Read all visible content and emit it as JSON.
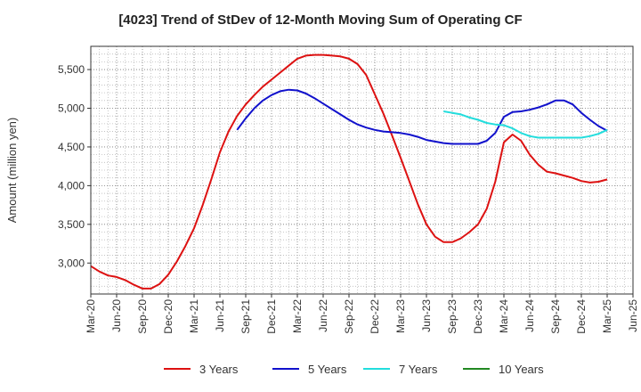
{
  "chart_data": {
    "type": "line",
    "title": "[4023]  Trend of StDev of 12-Month Moving Sum of Operating CF",
    "ylabel": "Amount (million yen)",
    "xlabel": "",
    "ylim": [
      2600,
      5800
    ],
    "yticks": [
      3000,
      3500,
      4000,
      4500,
      5000,
      5500
    ],
    "ytick_labels": [
      "3,000",
      "3,500",
      "4,000",
      "4,500",
      "5,000",
      "5,500"
    ],
    "xlim": [
      "2020-03",
      "2025-06"
    ],
    "xticks": [
      "2020-03",
      "2020-06",
      "2020-09",
      "2020-12",
      "2021-03",
      "2021-06",
      "2021-09",
      "2021-12",
      "2022-03",
      "2022-06",
      "2022-09",
      "2022-12",
      "2023-03",
      "2023-06",
      "2023-09",
      "2023-12",
      "2024-03",
      "2024-06",
      "2024-09",
      "2024-12",
      "2025-03",
      "2025-06"
    ],
    "xtick_labels": [
      "Mar-20",
      "Jun-20",
      "Sep-20",
      "Dec-20",
      "Mar-21",
      "Jun-21",
      "Sep-21",
      "Dec-21",
      "Mar-22",
      "Jun-22",
      "Sep-22",
      "Dec-22",
      "Mar-23",
      "Jun-23",
      "Sep-23",
      "Dec-23",
      "Mar-24",
      "Jun-24",
      "Sep-24",
      "Dec-24",
      "Mar-25",
      "Jun-25"
    ],
    "grid": true,
    "legend_position": "bottom",
    "series": [
      {
        "name": "3 Years",
        "color": "#dd1111",
        "points": [
          [
            "2020-03",
            2960
          ],
          [
            "2020-04",
            2890
          ],
          [
            "2020-05",
            2840
          ],
          [
            "2020-06",
            2820
          ],
          [
            "2020-07",
            2780
          ],
          [
            "2020-08",
            2720
          ],
          [
            "2020-09",
            2670
          ],
          [
            "2020-10",
            2670
          ],
          [
            "2020-11",
            2730
          ],
          [
            "2020-12",
            2850
          ],
          [
            "2021-01",
            3020
          ],
          [
            "2021-02",
            3220
          ],
          [
            "2021-03",
            3450
          ],
          [
            "2021-04",
            3750
          ],
          [
            "2021-05",
            4080
          ],
          [
            "2021-06",
            4430
          ],
          [
            "2021-07",
            4700
          ],
          [
            "2021-08",
            4900
          ],
          [
            "2021-09",
            5050
          ],
          [
            "2021-10",
            5170
          ],
          [
            "2021-11",
            5280
          ],
          [
            "2021-12",
            5370
          ],
          [
            "2022-01",
            5460
          ],
          [
            "2022-02",
            5550
          ],
          [
            "2022-03",
            5640
          ],
          [
            "2022-04",
            5680
          ],
          [
            "2022-05",
            5690
          ],
          [
            "2022-06",
            5690
          ],
          [
            "2022-07",
            5680
          ],
          [
            "2022-08",
            5670
          ],
          [
            "2022-09",
            5640
          ],
          [
            "2022-10",
            5570
          ],
          [
            "2022-11",
            5430
          ],
          [
            "2022-12",
            5180
          ],
          [
            "2023-01",
            4930
          ],
          [
            "2023-02",
            4650
          ],
          [
            "2023-03",
            4360
          ],
          [
            "2023-04",
            4060
          ],
          [
            "2023-05",
            3760
          ],
          [
            "2023-06",
            3500
          ],
          [
            "2023-07",
            3340
          ],
          [
            "2023-08",
            3270
          ],
          [
            "2023-09",
            3270
          ],
          [
            "2023-10",
            3320
          ],
          [
            "2023-11",
            3400
          ],
          [
            "2023-12",
            3500
          ],
          [
            "2024-01",
            3700
          ],
          [
            "2024-02",
            4050
          ],
          [
            "2024-03",
            4560
          ],
          [
            "2024-04",
            4660
          ],
          [
            "2024-05",
            4580
          ],
          [
            "2024-06",
            4400
          ],
          [
            "2024-07",
            4270
          ],
          [
            "2024-08",
            4180
          ],
          [
            "2024-09",
            4160
          ],
          [
            "2024-10",
            4130
          ],
          [
            "2024-11",
            4100
          ],
          [
            "2024-12",
            4060
          ],
          [
            "2025-01",
            4040
          ],
          [
            "2025-02",
            4050
          ],
          [
            "2025-03",
            4080
          ]
        ]
      },
      {
        "name": "5 Years",
        "color": "#1111cc",
        "points": [
          [
            "2021-08",
            4720
          ],
          [
            "2021-09",
            4870
          ],
          [
            "2021-10",
            5000
          ],
          [
            "2021-11",
            5100
          ],
          [
            "2021-12",
            5170
          ],
          [
            "2022-01",
            5220
          ],
          [
            "2022-02",
            5240
          ],
          [
            "2022-03",
            5230
          ],
          [
            "2022-04",
            5190
          ],
          [
            "2022-05",
            5130
          ],
          [
            "2022-06",
            5060
          ],
          [
            "2022-07",
            4990
          ],
          [
            "2022-08",
            4920
          ],
          [
            "2022-09",
            4850
          ],
          [
            "2022-10",
            4790
          ],
          [
            "2022-11",
            4750
          ],
          [
            "2022-12",
            4720
          ],
          [
            "2023-01",
            4700
          ],
          [
            "2023-02",
            4690
          ],
          [
            "2023-03",
            4680
          ],
          [
            "2023-04",
            4660
          ],
          [
            "2023-05",
            4630
          ],
          [
            "2023-06",
            4590
          ],
          [
            "2023-07",
            4570
          ],
          [
            "2023-08",
            4550
          ],
          [
            "2023-09",
            4540
          ],
          [
            "2023-10",
            4540
          ],
          [
            "2023-11",
            4540
          ],
          [
            "2023-12",
            4540
          ],
          [
            "2024-01",
            4580
          ],
          [
            "2024-02",
            4680
          ],
          [
            "2024-03",
            4890
          ],
          [
            "2024-04",
            4950
          ],
          [
            "2024-05",
            4960
          ],
          [
            "2024-06",
            4980
          ],
          [
            "2024-07",
            5010
          ],
          [
            "2024-08",
            5050
          ],
          [
            "2024-09",
            5100
          ],
          [
            "2024-10",
            5100
          ],
          [
            "2024-11",
            5050
          ],
          [
            "2024-12",
            4940
          ],
          [
            "2025-01",
            4850
          ],
          [
            "2025-02",
            4770
          ],
          [
            "2025-03",
            4710
          ]
        ]
      },
      {
        "name": "7 Years",
        "color": "#22dddd",
        "points": [
          [
            "2023-08",
            4960
          ],
          [
            "2023-09",
            4940
          ],
          [
            "2023-10",
            4920
          ],
          [
            "2023-11",
            4880
          ],
          [
            "2023-12",
            4850
          ],
          [
            "2024-01",
            4810
          ],
          [
            "2024-02",
            4790
          ],
          [
            "2024-03",
            4780
          ],
          [
            "2024-04",
            4740
          ],
          [
            "2024-05",
            4680
          ],
          [
            "2024-06",
            4640
          ],
          [
            "2024-07",
            4620
          ],
          [
            "2024-08",
            4620
          ],
          [
            "2024-09",
            4620
          ],
          [
            "2024-10",
            4620
          ],
          [
            "2024-11",
            4620
          ],
          [
            "2024-12",
            4620
          ],
          [
            "2025-01",
            4640
          ],
          [
            "2025-02",
            4670
          ],
          [
            "2025-03",
            4720
          ]
        ]
      },
      {
        "name": "10 Years",
        "color": "#228822",
        "points": []
      }
    ]
  }
}
